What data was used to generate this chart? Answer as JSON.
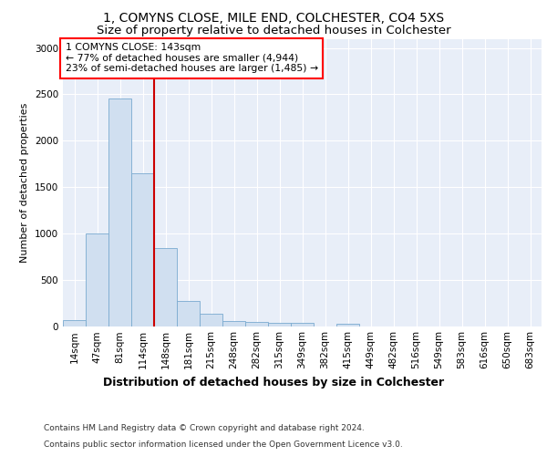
{
  "title1": "1, COMYNS CLOSE, MILE END, COLCHESTER, CO4 5XS",
  "title2": "Size of property relative to detached houses in Colchester",
  "xlabel": "Distribution of detached houses by size in Colchester",
  "ylabel": "Number of detached properties",
  "footer1": "Contains HM Land Registry data © Crown copyright and database right 2024.",
  "footer2": "Contains public sector information licensed under the Open Government Licence v3.0.",
  "annotation_line1": "1 COMYNS CLOSE: 143sqm",
  "annotation_line2": "← 77% of detached houses are smaller (4,944)",
  "annotation_line3": "23% of semi-detached houses are larger (1,485) →",
  "bar_categories": [
    "14sqm",
    "47sqm",
    "81sqm",
    "114sqm",
    "148sqm",
    "181sqm",
    "215sqm",
    "248sqm",
    "282sqm",
    "315sqm",
    "349sqm",
    "382sqm",
    "415sqm",
    "449sqm",
    "482sqm",
    "516sqm",
    "549sqm",
    "583sqm",
    "616sqm",
    "650sqm",
    "683sqm"
  ],
  "bar_values": [
    60,
    1000,
    2460,
    1650,
    840,
    270,
    130,
    55,
    40,
    35,
    35,
    0,
    25,
    0,
    0,
    0,
    0,
    0,
    0,
    0,
    0
  ],
  "bar_color": "#d0dff0",
  "bar_edgecolor": "#7aaad0",
  "vline_color": "#cc0000",
  "ylim": [
    0,
    3100
  ],
  "plot_bg_color": "#e8eef8",
  "title1_fontsize": 10,
  "title2_fontsize": 9.5,
  "xlabel_fontsize": 9,
  "ylabel_fontsize": 8,
  "tick_fontsize": 7.5,
  "footer_fontsize": 6.5
}
